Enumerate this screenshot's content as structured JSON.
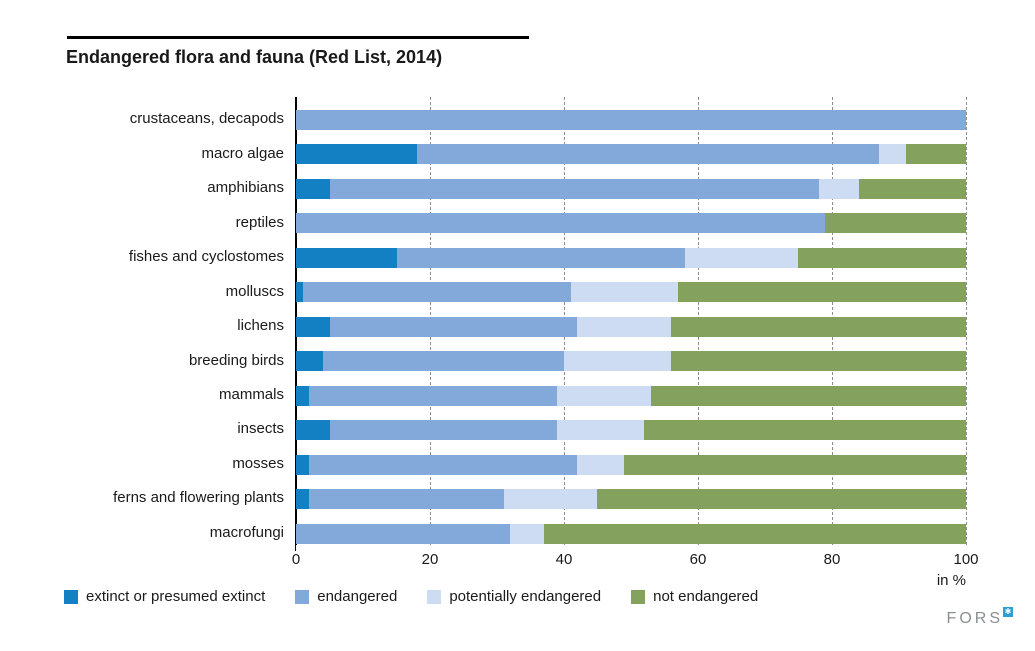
{
  "title": "Endangered flora and fauna (Red List, 2014)",
  "chart_data": {
    "type": "bar",
    "stacked": true,
    "orientation": "horizontal",
    "categories": [
      "crustaceans, decapods",
      "macro algae",
      "amphibians",
      "reptiles",
      "fishes and cyclostomes",
      "molluscs",
      "lichens",
      "breeding birds",
      "mammals",
      "insects",
      "mosses",
      "ferns and flowering plants",
      "macrofungi"
    ],
    "series": [
      {
        "name": "extinct or presumed extinct",
        "color": "#1480c4",
        "values": [
          0,
          18,
          5,
          0,
          15,
          1,
          5,
          4,
          2,
          5,
          2,
          2,
          0
        ]
      },
      {
        "name": "endangered",
        "color": "#83a9da",
        "values": [
          100,
          69,
          73,
          79,
          43,
          40,
          37,
          36,
          37,
          34,
          40,
          29,
          32
        ]
      },
      {
        "name": "potentially endangered",
        "color": "#cddcf2",
        "values": [
          0,
          4,
          6,
          0,
          17,
          16,
          14,
          16,
          14,
          13,
          7,
          14,
          5
        ]
      },
      {
        "name": "not endangered",
        "color": "#84a25e",
        "values": [
          0,
          9,
          16,
          21,
          25,
          43,
          44,
          44,
          47,
          48,
          51,
          55,
          63
        ]
      }
    ],
    "x_ticks": [
      0,
      20,
      40,
      60,
      80,
      100
    ],
    "xlim": [
      0,
      100
    ],
    "x_unit_label": "in %",
    "grid": "vertical-dashed",
    "legend_position": "bottom"
  },
  "footer": {
    "logo_text": "FORS",
    "logo_mark": "✱"
  }
}
